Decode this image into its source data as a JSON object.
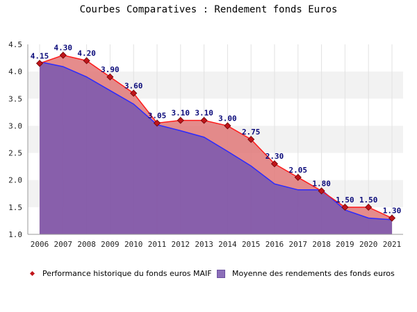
{
  "title": "Courbes Comparatives : Rendement fonds Euros",
  "colors": {
    "maif_line": "#ff1a1a",
    "maif_fill": "#e07878",
    "maif_marker": "#c0151b",
    "avg_line": "#2a2aff",
    "avg_fill": "#8256a6",
    "label": "#0a0a7a",
    "band": "#f2f2f2"
  },
  "legend": {
    "maif": "Performance historique du fonds euros MAIF",
    "avg": "Moyenne des rendements des fonds euros"
  },
  "chart_data": {
    "type": "area",
    "title": "Courbes Comparatives : Rendement fonds Euros",
    "categories": [
      "2006",
      "2007",
      "2008",
      "2009",
      "2010",
      "2011",
      "2012",
      "2013",
      "2014",
      "2015",
      "2016",
      "2017",
      "2018",
      "2019",
      "2020",
      "2021"
    ],
    "ylim": [
      1.0,
      4.5
    ],
    "yticks": [
      "1.0",
      "1.5",
      "2.0",
      "2.5",
      "3.0",
      "3.5",
      "4.0",
      "4.5"
    ],
    "grid": true,
    "legend_position": "bottom",
    "series": [
      {
        "name": "Performance historique du fonds euros MAIF",
        "values": [
          4.15,
          4.3,
          4.2,
          3.9,
          3.6,
          3.05,
          3.1,
          3.1,
          3.0,
          2.75,
          2.3,
          2.05,
          1.8,
          1.5,
          1.5,
          1.3
        ],
        "labels": [
          "4.15",
          "4.30",
          "4.20",
          "3.90",
          "3.60",
          "3.05",
          "3.10",
          "3.10",
          "3.00",
          "2.75",
          "2.30",
          "2.05",
          "1.80",
          "1.50",
          "1.50",
          "1.30"
        ]
      },
      {
        "name": "Moyenne des rendements des fonds euros",
        "values": [
          4.18,
          4.09,
          3.9,
          3.65,
          3.4,
          3.02,
          2.91,
          2.79,
          2.53,
          2.26,
          1.93,
          1.82,
          1.82,
          1.45,
          1.3,
          1.27
        ]
      }
    ]
  }
}
